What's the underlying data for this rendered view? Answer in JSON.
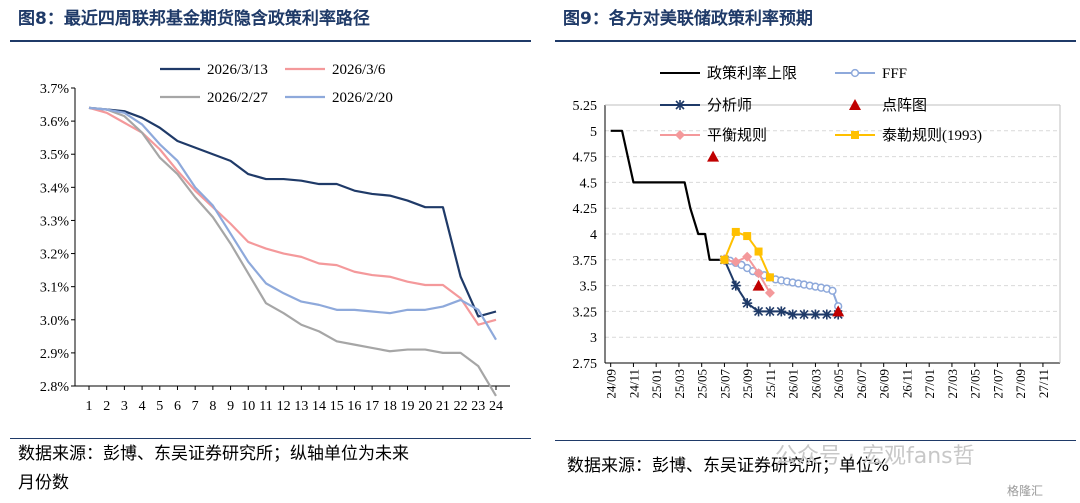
{
  "left": {
    "title": "图8：最近四周联邦基金期货隐含政策利率路径",
    "source_line1": "数据来源：彭博、东吴证券研究所；纵轴单位为未来",
    "source_line2": "月份数",
    "chart_data": {
      "type": "line",
      "x": [
        1,
        2,
        3,
        4,
        5,
        6,
        7,
        8,
        9,
        10,
        11,
        12,
        13,
        14,
        15,
        16,
        17,
        18,
        19,
        20,
        21,
        22,
        23,
        24
      ],
      "x_tick_labels": [
        "1",
        "2",
        "3",
        "4",
        "5",
        "6",
        "7",
        "8",
        "9",
        "10",
        "11",
        "12",
        "13",
        "14",
        "15",
        "16",
        "17",
        "18",
        "19",
        "20",
        "21",
        "22",
        "23",
        "24"
      ],
      "ylim": [
        2.8,
        3.7
      ],
      "y_ticks": [
        2.8,
        2.9,
        3.0,
        3.1,
        3.2,
        3.3,
        3.4,
        3.5,
        3.6,
        3.7
      ],
      "y_tick_labels": [
        "2.8%",
        "2.9%",
        "3.0%",
        "3.1%",
        "3.2%",
        "3.3%",
        "3.4%",
        "3.5%",
        "3.6%",
        "3.7%"
      ],
      "grid": false,
      "legend_position": "top",
      "series": [
        {
          "name": "2026/3/13",
          "color": "#1f3a68",
          "values": [
            3.64,
            3.635,
            3.63,
            3.61,
            3.58,
            3.54,
            3.52,
            3.5,
            3.48,
            3.44,
            3.425,
            3.425,
            3.42,
            3.41,
            3.41,
            3.39,
            3.38,
            3.375,
            3.36,
            3.34,
            3.34,
            3.13,
            3.01,
            3.025
          ]
        },
        {
          "name": "2026/3/6",
          "color": "#f4999b",
          "values": [
            3.64,
            3.625,
            3.595,
            3.565,
            3.515,
            3.45,
            3.39,
            3.34,
            3.29,
            3.235,
            3.215,
            3.2,
            3.19,
            3.17,
            3.165,
            3.145,
            3.135,
            3.13,
            3.115,
            3.105,
            3.105,
            3.065,
            2.985,
            3.0
          ]
        },
        {
          "name": "2026/2/27",
          "color": "#a6a6a6",
          "values": [
            3.64,
            3.635,
            3.615,
            3.565,
            3.49,
            3.44,
            3.37,
            3.31,
            3.23,
            3.14,
            3.05,
            3.02,
            2.985,
            2.965,
            2.935,
            2.925,
            2.915,
            2.905,
            2.91,
            2.91,
            2.9,
            2.9,
            2.86,
            2.77
          ]
        },
        {
          "name": "2026/2/20",
          "color": "#8ea9db",
          "values": [
            3.64,
            3.635,
            3.625,
            3.59,
            3.53,
            3.48,
            3.4,
            3.345,
            3.26,
            3.175,
            3.11,
            3.08,
            3.055,
            3.045,
            3.03,
            3.03,
            3.025,
            3.02,
            3.03,
            3.03,
            3.04,
            3.06,
            3.03,
            2.94
          ]
        }
      ]
    }
  },
  "right": {
    "title": "图9：各方对美联储政策利率预期",
    "source": "数据来源：彭博、东吴证券研究所；单位%",
    "watermark": "公众号 · 宏观fans哲",
    "watermark_badge": "格隆汇",
    "chart_data": {
      "type": "line",
      "x_tick_labels": [
        "24/09",
        "24/11",
        "25/01",
        "25/03",
        "25/05",
        "25/07",
        "25/09",
        "25/11",
        "26/01",
        "26/03",
        "26/05",
        "26/07",
        "26/09",
        "26/11",
        "27/01",
        "27/03",
        "27/05",
        "27/07",
        "27/09",
        "27/11"
      ],
      "ylim": [
        2.75,
        5.25
      ],
      "y_ticks": [
        2.75,
        3.0,
        3.25,
        3.5,
        3.75,
        4.0,
        4.25,
        4.5,
        4.75,
        5.0,
        5.25
      ],
      "y_tick_labels": [
        "2.75",
        "3",
        "3.25",
        "3.5",
        "3.75",
        "4",
        "4.25",
        "4.5",
        "4.75",
        "5",
        "5.25"
      ],
      "grid": true,
      "legend_position": "top",
      "series": [
        {
          "name": "政策利率上限",
          "color": "#000000",
          "marker": "none",
          "points": [
            [
              0,
              5.0
            ],
            [
              1,
              5.0
            ],
            [
              2,
              4.5
            ],
            [
              6.5,
              4.5
            ],
            [
              7,
              4.25
            ],
            [
              7.7,
              4.0
            ],
            [
              8.3,
              4.0
            ],
            [
              8.7,
              3.75
            ],
            [
              10,
              3.75
            ]
          ]
        },
        {
          "name": "FFF",
          "color": "#8ea9db",
          "marker": "circle",
          "points": [
            [
              10,
              3.75
            ],
            [
              10.5,
              3.74
            ],
            [
              11,
              3.72
            ],
            [
              11.5,
              3.7
            ],
            [
              12,
              3.67
            ],
            [
              12.5,
              3.64
            ],
            [
              13,
              3.62
            ],
            [
              13.5,
              3.6
            ],
            [
              14,
              3.58
            ],
            [
              14.5,
              3.56
            ],
            [
              15,
              3.55
            ],
            [
              15.5,
              3.54
            ],
            [
              16,
              3.53
            ],
            [
              16.5,
              3.52
            ],
            [
              17,
              3.51
            ],
            [
              17.5,
              3.5
            ],
            [
              18,
              3.49
            ],
            [
              18.5,
              3.48
            ],
            [
              19,
              3.47
            ],
            [
              19.5,
              3.45
            ],
            [
              20,
              3.3
            ]
          ]
        },
        {
          "name": "分析师",
          "color": "#1f3a68",
          "marker": "asterisk",
          "points": [
            [
              10,
              3.75
            ],
            [
              11,
              3.5
            ],
            [
              12,
              3.33
            ],
            [
              13,
              3.25
            ],
            [
              14,
              3.25
            ],
            [
              15,
              3.25
            ],
            [
              16,
              3.22
            ],
            [
              17,
              3.22
            ],
            [
              18,
              3.22
            ],
            [
              19,
              3.22
            ],
            [
              20,
              3.22
            ]
          ]
        },
        {
          "name": "点阵图",
          "color": "#c00000",
          "marker": "triangle",
          "line": false,
          "points": [
            [
              9,
              4.75
            ],
            [
              13,
              3.5
            ],
            [
              20,
              3.25
            ]
          ]
        },
        {
          "name": "平衡规则",
          "color": "#f4999b",
          "marker": "diamond",
          "points": [
            [
              10,
              3.75
            ],
            [
              11,
              3.73
            ],
            [
              12,
              3.78
            ],
            [
              13,
              3.62
            ],
            [
              14,
              3.43
            ]
          ]
        },
        {
          "name": "泰勒规则(1993)",
          "color": "#ffc000",
          "marker": "square",
          "points": [
            [
              10,
              3.75
            ],
            [
              11,
              4.02
            ],
            [
              12,
              3.98
            ],
            [
              13,
              3.83
            ],
            [
              14,
              3.58
            ]
          ]
        }
      ]
    }
  }
}
